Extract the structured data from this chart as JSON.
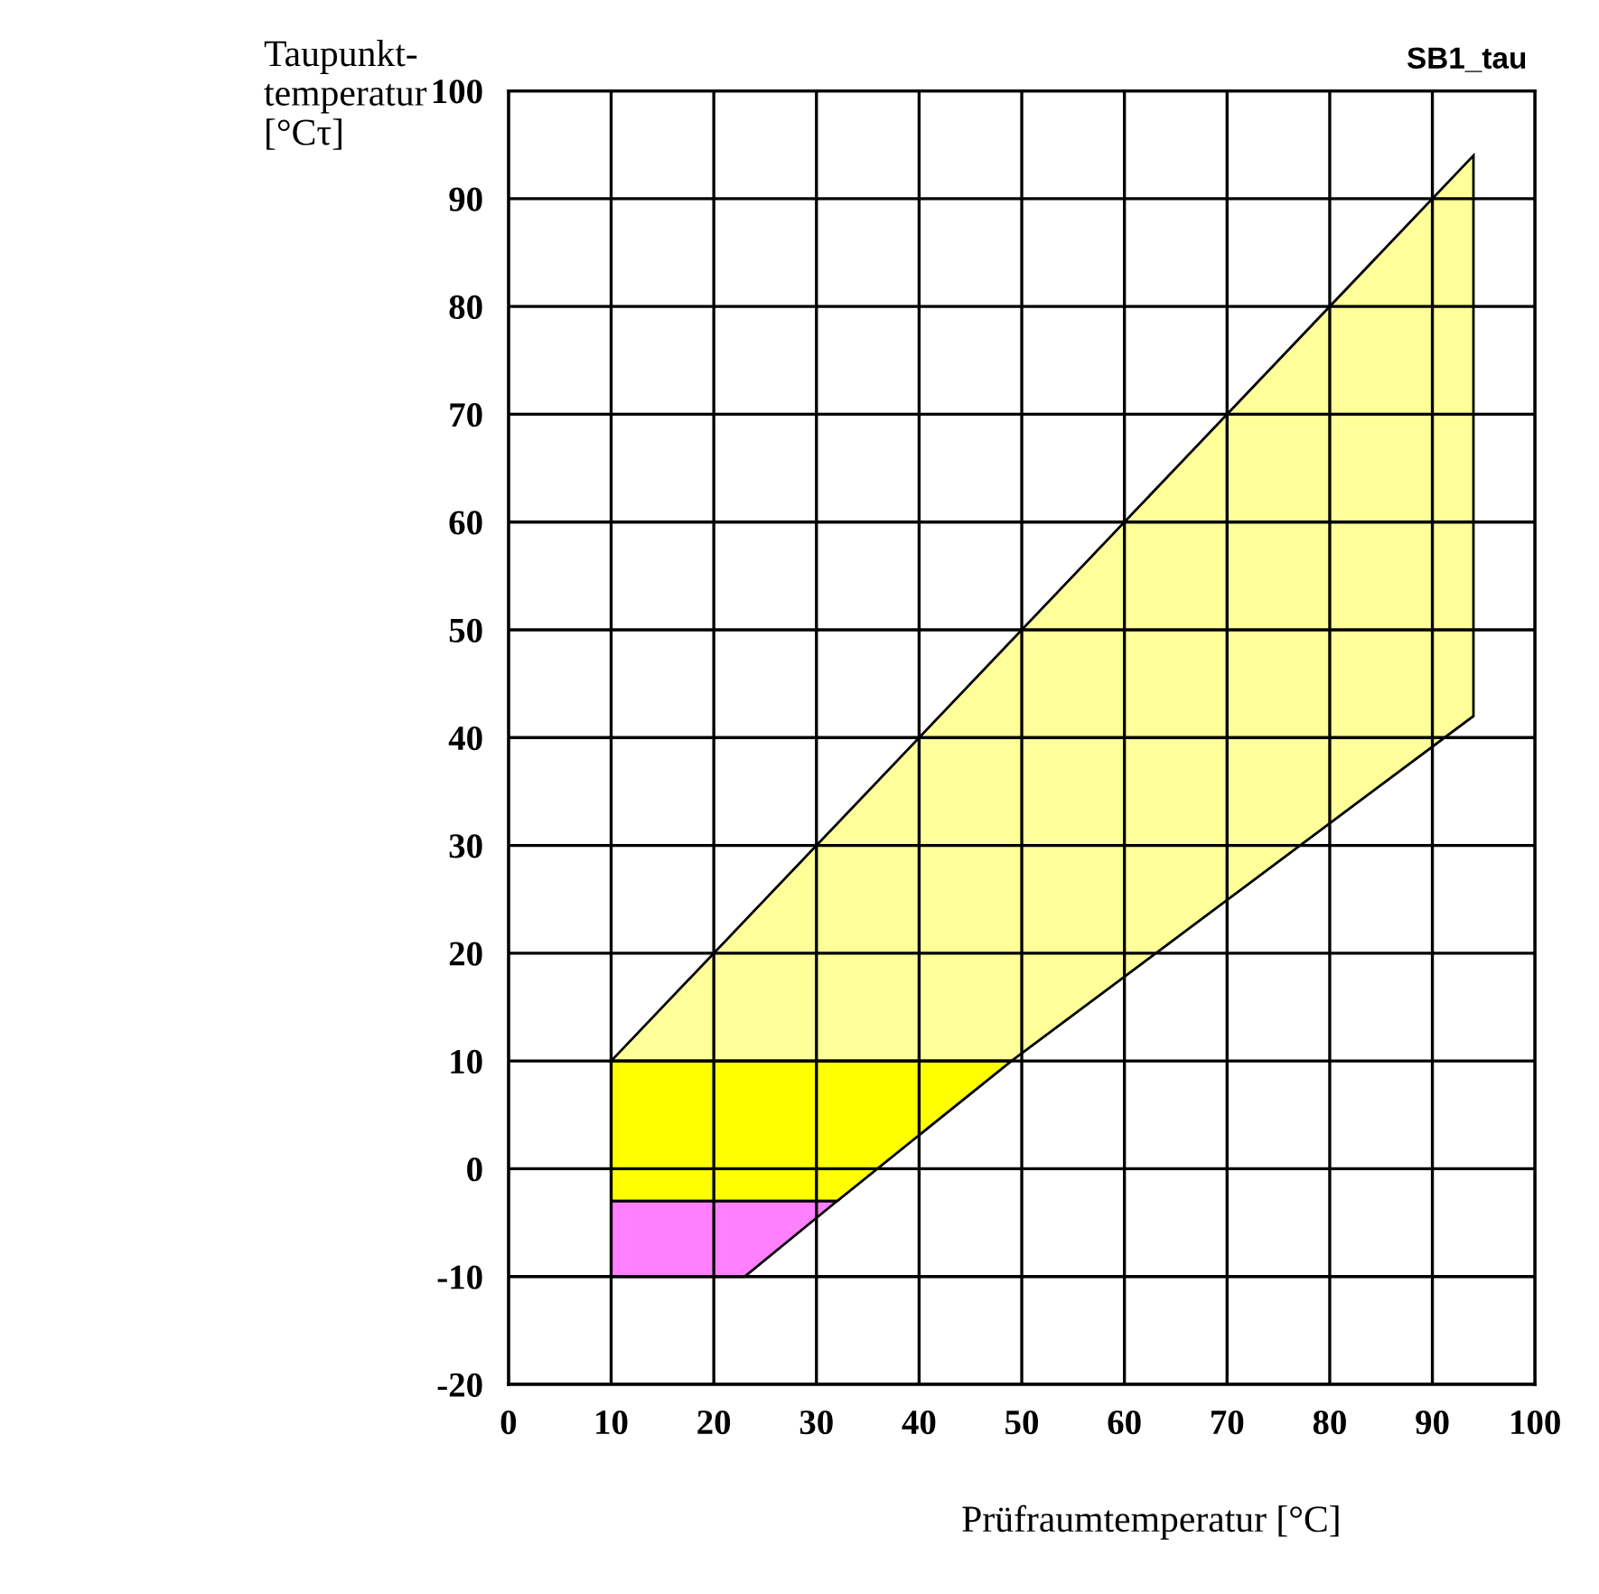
{
  "chart_data": {
    "type": "area",
    "xlabel": "Prüfraumtemperatur [°C]",
    "ylabel": "Taupunkt-\ntemperatur\n[°Cτ]",
    "annotations": [
      "SB1_tau"
    ],
    "series": [
      {
        "color": "#ffff99",
        "x": [
          10,
          94,
          94,
          49
        ],
        "values": [
          10,
          94,
          42,
          10
        ]
      },
      {
        "color": "#ffff00",
        "x": [
          10,
          49,
          32,
          10
        ],
        "values": [
          10,
          10,
          -3,
          -3
        ]
      },
      {
        "color": "#ff80ff",
        "x": [
          10,
          32,
          23,
          10
        ],
        "values": [
          -3,
          -3,
          -10,
          -10
        ]
      }
    ],
    "xlim": [
      0,
      100
    ],
    "xticks": [
      0,
      10,
      20,
      30,
      40,
      50,
      60,
      70,
      80,
      90,
      100
    ],
    "ylim": [
      -20,
      100
    ],
    "yticks": [
      -20,
      -10,
      0,
      10,
      20,
      30,
      40,
      50,
      60,
      70,
      80,
      90,
      100
    ],
    "grid": true,
    "legend": false
  }
}
